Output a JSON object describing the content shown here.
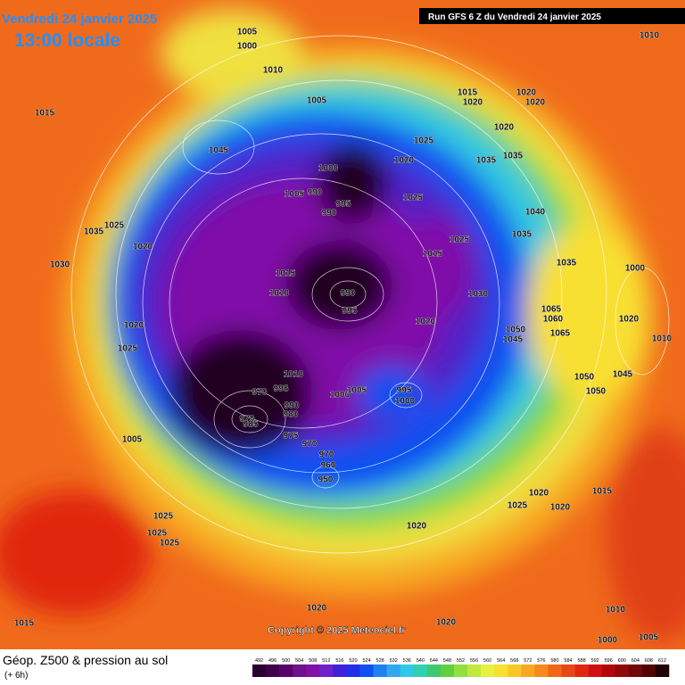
{
  "header": {
    "date": "Vendredi 24 janvier 2025",
    "time": "13:00 locale",
    "run": "Run GFS 6 Z du Vendredi 24 janvier 2025"
  },
  "copyright": "Copyright © 2025 Meteociel.fr",
  "legend": {
    "title": "Géop. Z500 & pression au sol",
    "subtitle": "(+ 6h)",
    "ticks": [
      492,
      496,
      500,
      504,
      508,
      512,
      516,
      520,
      524,
      528,
      532,
      536,
      540,
      544,
      548,
      552,
      556,
      560,
      564,
      568,
      572,
      576,
      580,
      584,
      588,
      592,
      596,
      600,
      604,
      608,
      612
    ],
    "colors": [
      "#2a0030",
      "#40004a",
      "#58006a",
      "#70108a",
      "#8010a8",
      "#7020c8",
      "#4020d8",
      "#2030e8",
      "#1050f0",
      "#2080f0",
      "#30a8f0",
      "#30c8e8",
      "#30d0b0",
      "#40c870",
      "#60d040",
      "#90e040",
      "#c0e840",
      "#e8f040",
      "#f8e030",
      "#f8c828",
      "#f8a820",
      "#f88820",
      "#f06818",
      "#e84818",
      "#e02810",
      "#d01010",
      "#b00808",
      "#900808",
      "#700808",
      "#500404",
      "#200000"
    ]
  },
  "pressure_labels": [
    1005,
    1000,
    1010,
    1015,
    1005,
    1045,
    1015,
    1020,
    1020,
    1020,
    1020,
    1025,
    1020,
    1035,
    1035,
    1000,
    990,
    995,
    990,
    1005,
    1025,
    1040,
    1025,
    1035,
    1015,
    1035,
    1000,
    1030,
    1035,
    1025,
    1020,
    1015,
    1010,
    990,
    995,
    1030,
    1020,
    1020,
    1025,
    1065,
    1060,
    1050,
    1045,
    1065,
    1005,
    970,
    970,
    985,
    1010,
    998,
    990,
    980,
    975,
    970,
    970,
    960,
    950,
    1000,
    1005,
    995,
    1000,
    1050,
    1050,
    1045,
    1020,
    1025,
    1020,
    1015,
    1025,
    1025,
    1025,
    1020,
    1015,
    1020,
    1020,
    1010,
    1010,
    1020,
    1010,
    1000,
    1005
  ]
}
